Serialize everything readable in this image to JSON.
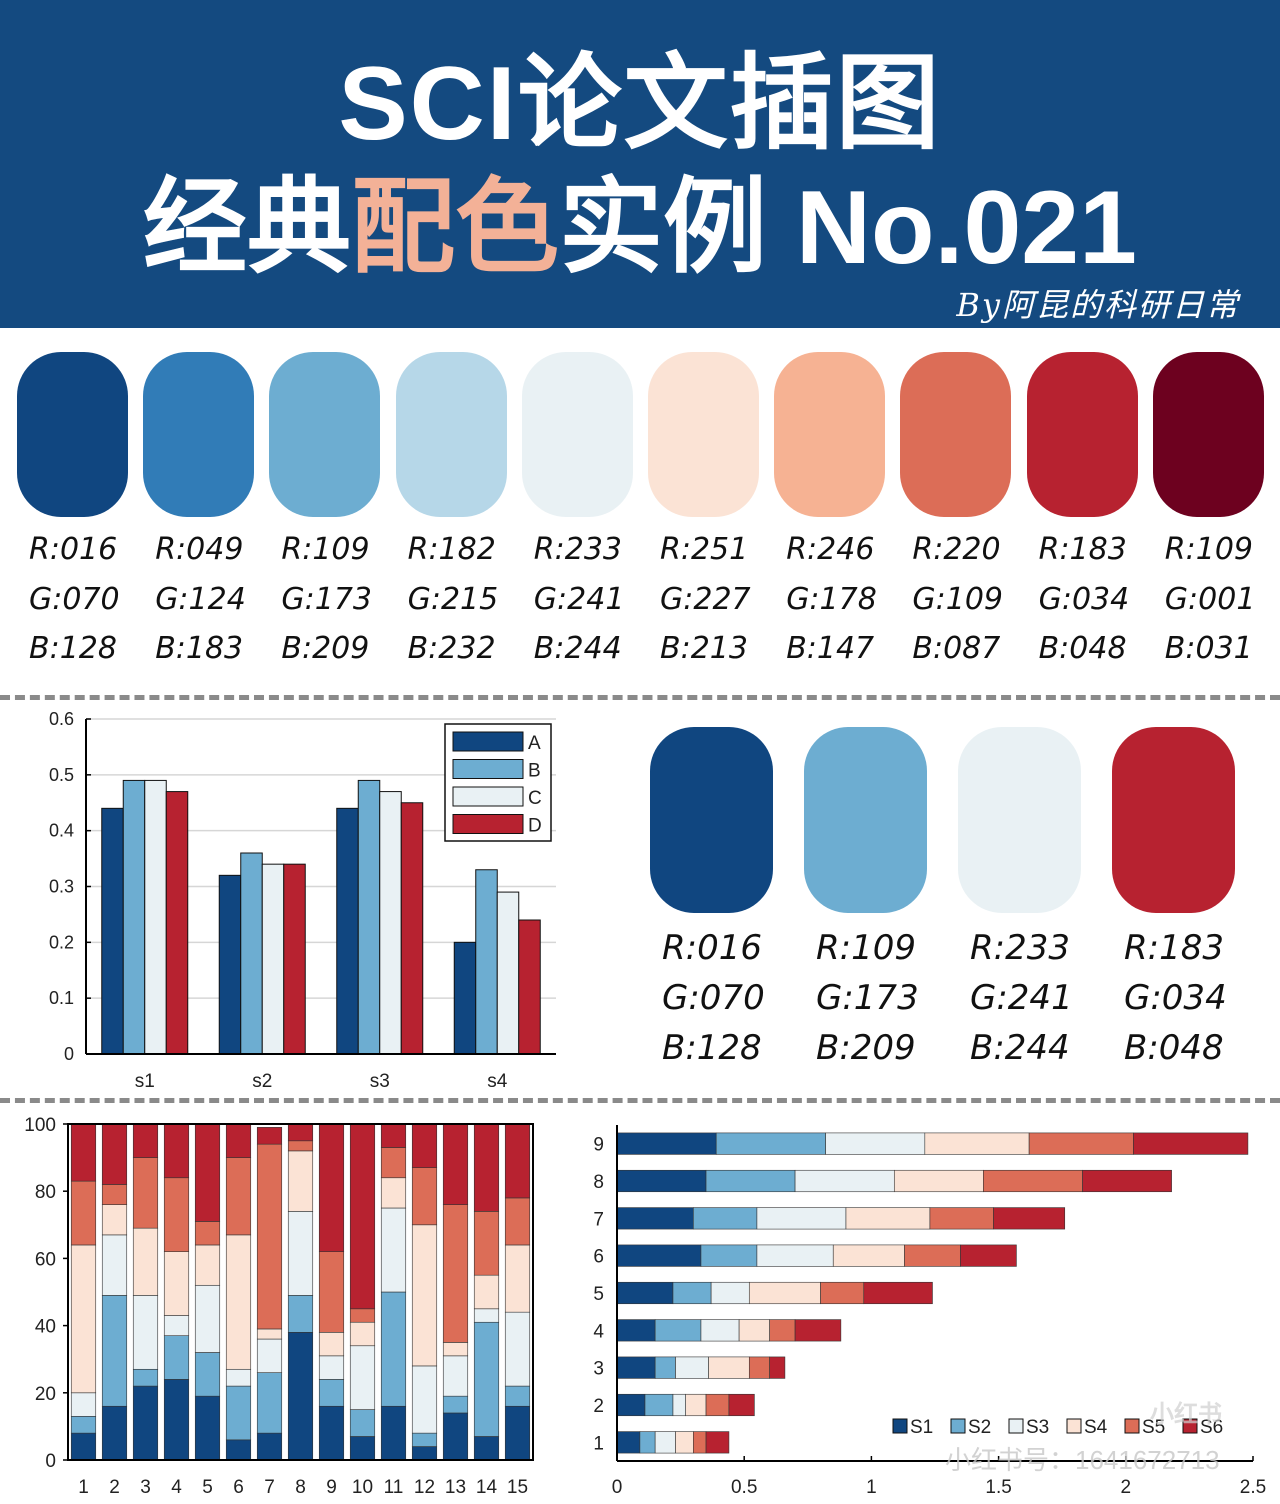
{
  "header": {
    "title_line1": "SCI论文插图",
    "title_line2_a": "经典",
    "title_line2_b": "配色",
    "title_line2_c": "实例 No.021",
    "byline": "By阿昆的科研日常"
  },
  "palette10": [
    {
      "color": "#104680",
      "r": "R:016",
      "g": "G:070",
      "b": "B:128"
    },
    {
      "color": "#317cb7",
      "r": "R:049",
      "g": "G:124",
      "b": "B:183"
    },
    {
      "color": "#6dadd1",
      "r": "R:109",
      "g": "G:173",
      "b": "B:209"
    },
    {
      "color": "#b6d7e8",
      "r": "R:182",
      "g": "G:215",
      "b": "B:232"
    },
    {
      "color": "#e9f1f4",
      "r": "R:233",
      "g": "G:241",
      "b": "B:244"
    },
    {
      "color": "#fbe3d5",
      "r": "R:251",
      "g": "G:227",
      "b": "B:213"
    },
    {
      "color": "#f6b293",
      "r": "R:246",
      "g": "G:178",
      "b": "B:147"
    },
    {
      "color": "#dc6d57",
      "r": "R:220",
      "g": "G:109",
      "b": "B:087"
    },
    {
      "color": "#b72230",
      "r": "R:183",
      "g": "G:034",
      "b": "B:048"
    },
    {
      "color": "#6d011f",
      "r": "R:109",
      "g": "G:001",
      "b": "B:031"
    }
  ],
  "palette4": [
    {
      "color": "#104680",
      "r": "R:016",
      "g": "G:070",
      "b": "B:128"
    },
    {
      "color": "#6dadd1",
      "r": "R:109",
      "g": "G:173",
      "b": "B:209"
    },
    {
      "color": "#e9f1f4",
      "r": "R:233",
      "g": "G:241",
      "b": "B:244"
    },
    {
      "color": "#b72230",
      "r": "R:183",
      "g": "G:034",
      "b": "B:048"
    }
  ],
  "watermark": "小红书号：1641672713",
  "watermark_logo": "小红书",
  "chart_data": [
    {
      "type": "bar",
      "categories": [
        "s1",
        "s2",
        "s3",
        "s4"
      ],
      "series": [
        {
          "name": "A",
          "color": "#104680",
          "values": [
            0.44,
            0.32,
            0.44,
            0.2
          ]
        },
        {
          "name": "B",
          "color": "#6dadd1",
          "values": [
            0.49,
            0.36,
            0.49,
            0.33
          ]
        },
        {
          "name": "C",
          "color": "#e9f1f4",
          "values": [
            0.49,
            0.34,
            0.47,
            0.29
          ]
        },
        {
          "name": "D",
          "color": "#b72230",
          "values": [
            0.47,
            0.34,
            0.45,
            0.24
          ]
        }
      ],
      "ylim": [
        0,
        0.6
      ],
      "yticks": [
        "0",
        "0.1",
        "0.2",
        "0.3",
        "0.4",
        "0.5",
        "0.6"
      ],
      "legend": "top-right",
      "grid": true
    },
    {
      "type": "bar",
      "stacked": true,
      "categories": [
        "1",
        "2",
        "3",
        "4",
        "5",
        "6",
        "7",
        "8",
        "9",
        "10",
        "11",
        "12",
        "13",
        "14",
        "15"
      ],
      "colors": [
        "#104680",
        "#6dadd1",
        "#e9f1f4",
        "#fbe3d5",
        "#dc6d57",
        "#b72230"
      ],
      "segments": [
        [
          8,
          5,
          7,
          44,
          19,
          17
        ],
        [
          16,
          33,
          18,
          9,
          6,
          18
        ],
        [
          22,
          5,
          22,
          20,
          21,
          10
        ],
        [
          24,
          13,
          6,
          19,
          22,
          16
        ],
        [
          19,
          13,
          20,
          12,
          7,
          29
        ],
        [
          6,
          16,
          5,
          40,
          23,
          10
        ],
        [
          8,
          18,
          10,
          3,
          55,
          5
        ],
        [
          38,
          11,
          25,
          18,
          3,
          5
        ],
        [
          16,
          8,
          7,
          7,
          24,
          38
        ],
        [
          7,
          8,
          19,
          7,
          4,
          55
        ],
        [
          16,
          34,
          25,
          9,
          9,
          7
        ],
        [
          4,
          4,
          20,
          42,
          17,
          13
        ],
        [
          14,
          5,
          12,
          4,
          41,
          24
        ],
        [
          7,
          34,
          4,
          10,
          19,
          26
        ],
        [
          16,
          6,
          22,
          20,
          14,
          22
        ]
      ],
      "ylim": [
        0,
        100
      ],
      "yticks": [
        "0",
        "20",
        "40",
        "60",
        "80",
        "100"
      ]
    },
    {
      "type": "bar",
      "orientation": "horizontal",
      "stacked": true,
      "categories": [
        "1",
        "2",
        "3",
        "4",
        "5",
        "6",
        "7",
        "8",
        "9"
      ],
      "colors": [
        "#104680",
        "#6dadd1",
        "#e9f1f4",
        "#fbe3d5",
        "#dc6d57",
        "#b72230"
      ],
      "series_names": [
        "S1",
        "S2",
        "S3",
        "S4",
        "S5",
        "S6"
      ],
      "segments": [
        [
          0.09,
          0.06,
          0.08,
          0.07,
          0.05,
          0.09
        ],
        [
          0.11,
          0.11,
          0.05,
          0.08,
          0.09,
          0.1
        ],
        [
          0.15,
          0.08,
          0.13,
          0.16,
          0.08,
          0.06
        ],
        [
          0.15,
          0.18,
          0.15,
          0.12,
          0.1,
          0.18
        ],
        [
          0.22,
          0.15,
          0.15,
          0.28,
          0.17,
          0.27
        ],
        [
          0.33,
          0.22,
          0.3,
          0.28,
          0.22,
          0.22
        ],
        [
          0.3,
          0.25,
          0.35,
          0.33,
          0.25,
          0.28
        ],
        [
          0.35,
          0.35,
          0.39,
          0.35,
          0.39,
          0.35
        ],
        [
          0.39,
          0.43,
          0.39,
          0.41,
          0.41,
          0.45
        ]
      ],
      "xlim": [
        0,
        2.5
      ],
      "xticks": [
        "0",
        "0.5",
        "1",
        "1.5",
        "2",
        "2.5"
      ],
      "legend": "bottom-right"
    }
  ]
}
